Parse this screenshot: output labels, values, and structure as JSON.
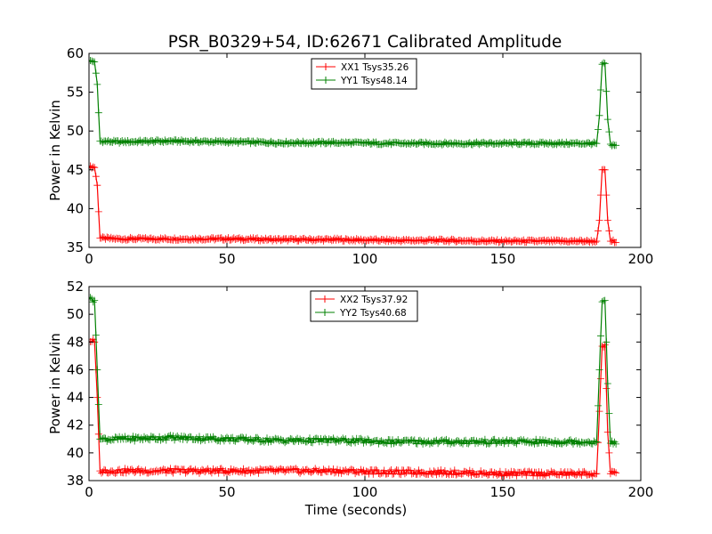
{
  "figure": {
    "title": "PSR_B0329+54, ID:62671 Calibrated Amplitude"
  },
  "chart_data": [
    {
      "type": "line",
      "title": "PSR_B0329+54, ID:62671 Calibrated Amplitude",
      "xlabel": "",
      "ylabel": "Power in Kelvin",
      "xlim": [
        0,
        200
      ],
      "ylim": [
        35,
        60
      ],
      "xticks": [
        "0",
        "50",
        "100",
        "150",
        "200"
      ],
      "yticks": [
        "35",
        "40",
        "45",
        "50",
        "55",
        "60"
      ],
      "legend": "top-center",
      "grid": false,
      "series": [
        {
          "name": "XX1 Tsys35.26",
          "color": "#ff0000",
          "x": [
            0,
            1,
            2,
            3,
            4,
            10,
            30,
            50,
            70,
            90,
            110,
            130,
            150,
            170,
            184,
            185,
            186,
            187,
            188,
            189,
            190,
            191
          ],
          "y": [
            45.3,
            45.4,
            45.3,
            43.0,
            36.2,
            36.1,
            36.1,
            36.1,
            36.0,
            36.0,
            35.9,
            35.9,
            35.8,
            35.8,
            35.8,
            38.5,
            45.0,
            45.0,
            38.5,
            35.8,
            35.8,
            35.8
          ]
        },
        {
          "name": "YY1 Tsys48.14",
          "color": "#008000",
          "x": [
            0,
            1,
            2,
            3,
            4,
            10,
            30,
            50,
            70,
            90,
            110,
            130,
            150,
            170,
            184,
            185,
            186,
            187,
            188,
            189,
            190,
            191
          ],
          "y": [
            59.0,
            59.0,
            58.9,
            56.0,
            48.7,
            48.6,
            48.7,
            48.6,
            48.5,
            48.5,
            48.4,
            48.4,
            48.4,
            48.4,
            48.4,
            52.0,
            58.6,
            58.7,
            51.5,
            48.3,
            48.2,
            48.2
          ]
        }
      ]
    },
    {
      "type": "line",
      "title": "",
      "xlabel": "Time (seconds)",
      "ylabel": "Power in Kelvin",
      "xlim": [
        0,
        200
      ],
      "ylim": [
        38,
        52
      ],
      "xticks": [
        "0",
        "50",
        "100",
        "150",
        "200"
      ],
      "yticks": [
        "38",
        "40",
        "42",
        "44",
        "46",
        "48",
        "50",
        "52"
      ],
      "legend": "top-center",
      "grid": false,
      "series": [
        {
          "name": "XX2 Tsys37.92",
          "color": "#ff0000",
          "x": [
            0,
            1,
            2,
            3,
            4,
            10,
            30,
            50,
            70,
            90,
            110,
            130,
            150,
            170,
            184,
            185,
            186,
            187,
            188,
            189,
            190,
            191
          ],
          "y": [
            48.0,
            48.1,
            48.0,
            44.0,
            38.7,
            38.7,
            38.7,
            38.7,
            38.7,
            38.7,
            38.6,
            38.6,
            38.5,
            38.5,
            38.5,
            43.0,
            47.7,
            47.8,
            41.5,
            38.5,
            38.5,
            38.5
          ]
        },
        {
          "name": "YY2 Tsys40.68",
          "color": "#008000",
          "x": [
            0,
            1,
            2,
            3,
            4,
            10,
            30,
            50,
            70,
            90,
            110,
            130,
            150,
            170,
            184,
            185,
            186,
            187,
            188,
            189,
            190,
            191
          ],
          "y": [
            51.1,
            51.1,
            51.0,
            46.0,
            41.0,
            41.0,
            41.1,
            41.0,
            40.9,
            40.9,
            40.8,
            40.8,
            40.8,
            40.8,
            40.8,
            46.0,
            50.9,
            51.0,
            45.0,
            40.7,
            40.7,
            40.7
          ]
        }
      ]
    }
  ]
}
